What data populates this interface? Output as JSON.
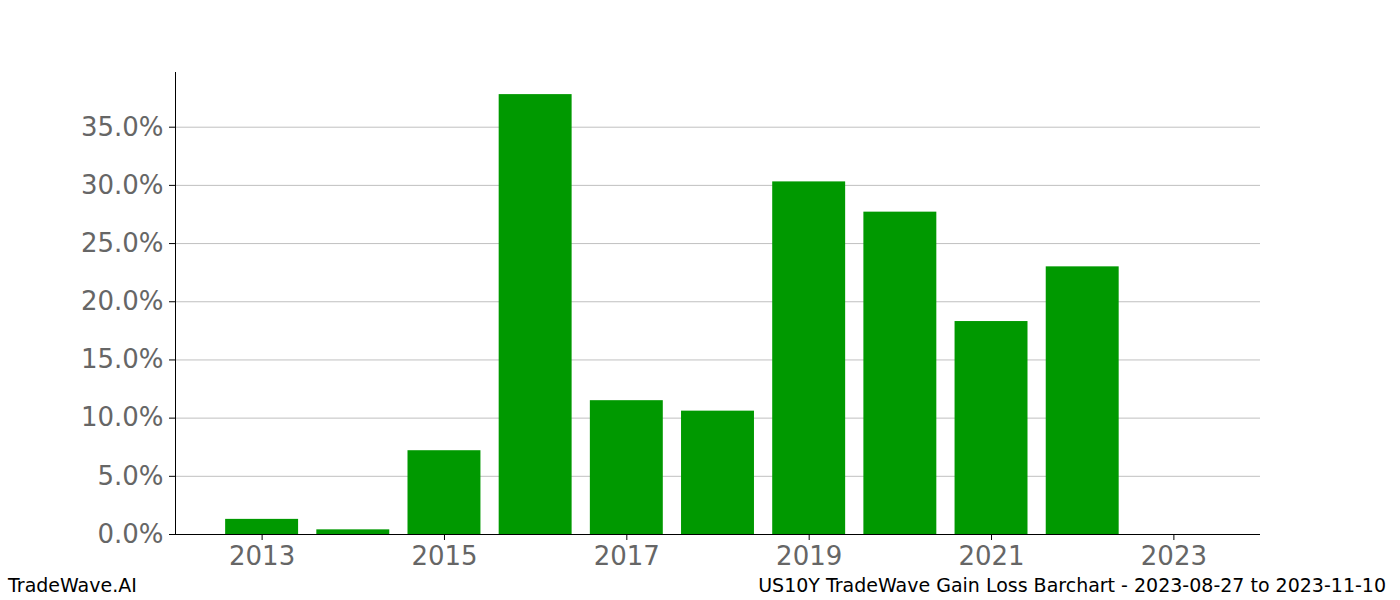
{
  "chart_data": {
    "type": "bar",
    "caption": "US10Y TradeWave Gain Loss Barchart - 2023-08-27 to 2023-11-10",
    "source": "TradeWave.AI",
    "x": [
      2013,
      2014,
      2015,
      2016,
      2017,
      2018,
      2019,
      2020,
      2021,
      2022
    ],
    "values": [
      1.3,
      0.4,
      7.2,
      37.8,
      11.5,
      10.6,
      30.3,
      27.7,
      18.3,
      23.0
    ],
    "color": "#009900",
    "xlim": [
      2012.05,
      2023.95
    ],
    "xticks": [
      2013,
      2015,
      2017,
      2019,
      2021,
      2023
    ],
    "ylim": [
      0,
      39.7
    ],
    "yticks": [
      {
        "value": 0,
        "label": "0.0%"
      },
      {
        "value": 5,
        "label": "5.0%"
      },
      {
        "value": 10,
        "label": "10.0%"
      },
      {
        "value": 15,
        "label": "15.0%"
      },
      {
        "value": 20,
        "label": "20.0%"
      },
      {
        "value": 25,
        "label": "25.0%"
      },
      {
        "value": 30,
        "label": "30.0%"
      },
      {
        "value": 35,
        "label": "35.0%"
      }
    ],
    "grid": true
  }
}
